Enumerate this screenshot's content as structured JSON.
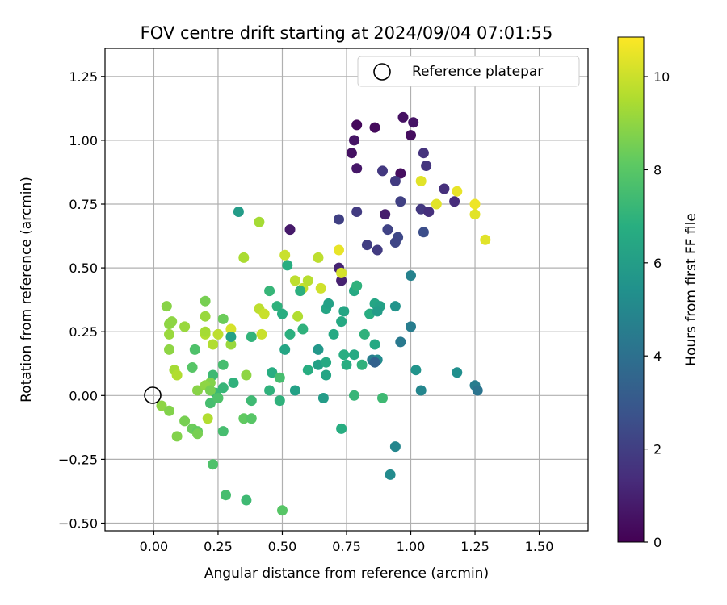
{
  "chart_data": {
    "type": "scatter",
    "title": "FOV centre drift starting at 2024/09/04 07:01:55",
    "xlabel": "Angular distance from reference (arcmin)",
    "ylabel": "Rotation from reference (arcmin)",
    "xlim": [
      -0.19,
      1.69
    ],
    "ylim": [
      -0.53,
      1.36
    ],
    "xticks": [
      "0.00",
      "0.25",
      "0.50",
      "0.75",
      "1.00",
      "1.25",
      "1.50"
    ],
    "yticks": [
      "−0.50",
      "−0.25",
      "0.00",
      "0.25",
      "0.50",
      "0.75",
      "1.00",
      "1.25"
    ],
    "grid": true,
    "legend": {
      "placement": "top-right",
      "entries": [
        "Reference platepar"
      ]
    },
    "reference_point": {
      "x": 0.0,
      "y": 0.0
    },
    "colorbar": {
      "label": "Hours from first FF file",
      "range": [
        0,
        10.85
      ],
      "ticks": [
        "0",
        "2",
        "4",
        "6",
        "8",
        "10"
      ],
      "colormap": "viridis"
    },
    "points": [
      [
        0.79,
        1.06,
        0.2
      ],
      [
        0.86,
        1.05,
        0.3
      ],
      [
        0.97,
        1.09,
        0.5
      ],
      [
        1.01,
        1.07,
        0.6
      ],
      [
        1.0,
        1.02,
        0.4
      ],
      [
        0.78,
        1.0,
        0.6
      ],
      [
        0.77,
        0.95,
        0.5
      ],
      [
        0.79,
        0.89,
        0.7
      ],
      [
        0.96,
        0.87,
        0.4
      ],
      [
        1.05,
        0.95,
        1.6
      ],
      [
        0.89,
        0.88,
        1.8
      ],
      [
        0.94,
        0.84,
        1.9
      ],
      [
        1.06,
        0.9,
        1.7
      ],
      [
        1.13,
        0.81,
        1.5
      ],
      [
        1.17,
        0.76,
        1.4
      ],
      [
        0.79,
        0.72,
        1.9
      ],
      [
        0.72,
        0.69,
        2.1
      ],
      [
        0.96,
        0.76,
        2.1
      ],
      [
        1.04,
        0.73,
        1.8
      ],
      [
        1.07,
        0.72,
        1.5
      ],
      [
        0.9,
        0.71,
        0.9
      ],
      [
        0.53,
        0.65,
        0.8
      ],
      [
        0.91,
        0.65,
        2.2
      ],
      [
        0.95,
        0.62,
        2.4
      ],
      [
        0.94,
        0.6,
        2.3
      ],
      [
        1.05,
        0.64,
        2.6
      ],
      [
        0.83,
        0.59,
        2.0
      ],
      [
        0.87,
        0.57,
        1.9
      ],
      [
        0.72,
        0.5,
        1.1
      ],
      [
        0.73,
        0.45,
        1.0
      ],
      [
        1.04,
        0.84,
        10.4
      ],
      [
        1.1,
        0.75,
        10.4
      ],
      [
        1.18,
        0.8,
        10.5
      ],
      [
        1.25,
        0.75,
        10.6
      ],
      [
        1.25,
        0.71,
        10.4
      ],
      [
        1.29,
        0.61,
        10.4
      ],
      [
        0.72,
        0.57,
        10.5
      ],
      [
        0.73,
        0.48,
        10.2
      ],
      [
        0.51,
        0.55,
        10.0
      ],
      [
        0.64,
        0.54,
        9.8
      ],
      [
        0.35,
        0.54,
        9.5
      ],
      [
        0.41,
        0.68,
        9.4
      ],
      [
        0.55,
        0.45,
        9.8
      ],
      [
        0.58,
        0.42,
        9.9
      ],
      [
        0.6,
        0.45,
        9.7
      ],
      [
        0.65,
        0.42,
        10.1
      ],
      [
        0.56,
        0.31,
        9.6
      ],
      [
        0.41,
        0.34,
        9.8
      ],
      [
        0.43,
        0.32,
        10.0
      ],
      [
        0.42,
        0.24,
        10.0
      ],
      [
        0.3,
        0.26,
        10.2
      ],
      [
        0.25,
        0.24,
        9.8
      ],
      [
        0.2,
        0.24,
        9.6
      ],
      [
        0.2,
        0.25,
        9.4
      ],
      [
        0.23,
        0.2,
        9.6
      ],
      [
        0.2,
        0.31,
        9.2
      ],
      [
        0.12,
        0.27,
        9.2
      ],
      [
        0.06,
        0.28,
        9.0
      ],
      [
        0.06,
        0.24,
        9.2
      ],
      [
        0.07,
        0.29,
        9.0
      ],
      [
        0.06,
        0.18,
        9.0
      ],
      [
        0.05,
        0.35,
        8.9
      ],
      [
        0.08,
        0.1,
        9.4
      ],
      [
        0.09,
        0.08,
        9.6
      ],
      [
        0.36,
        0.08,
        9.0
      ],
      [
        0.3,
        0.2,
        9.2
      ],
      [
        0.33,
        0.72,
        6.0
      ],
      [
        0.52,
        0.51,
        6.8
      ],
      [
        0.57,
        0.41,
        6.9
      ],
      [
        0.45,
        0.41,
        7.2
      ],
      [
        0.48,
        0.35,
        7.0
      ],
      [
        0.5,
        0.32,
        6.8
      ],
      [
        0.58,
        0.26,
        7.0
      ],
      [
        0.53,
        0.24,
        6.9
      ],
      [
        0.38,
        0.23,
        7.1
      ],
      [
        0.3,
        0.23,
        6.2
      ],
      [
        0.27,
        0.3,
        8.4
      ],
      [
        0.2,
        0.37,
        8.6
      ],
      [
        0.16,
        0.18,
        7.8
      ],
      [
        0.15,
        0.11,
        8.0
      ],
      [
        0.27,
        0.12,
        7.6
      ],
      [
        0.23,
        0.08,
        7.4
      ],
      [
        0.31,
        0.05,
        7.0
      ],
      [
        0.27,
        0.03,
        7.2
      ],
      [
        0.24,
        0.01,
        7.3
      ],
      [
        0.22,
        0.05,
        8.8
      ],
      [
        0.17,
        0.02,
        8.9
      ],
      [
        0.2,
        0.04,
        9.0
      ],
      [
        0.22,
        0.02,
        8.6
      ],
      [
        0.22,
        -0.03,
        7.6
      ],
      [
        0.25,
        -0.01,
        7.8
      ],
      [
        0.21,
        -0.09,
        9.6
      ],
      [
        0.12,
        -0.1,
        8.6
      ],
      [
        0.03,
        -0.04,
        9.0
      ],
      [
        0.06,
        -0.06,
        8.8
      ],
      [
        0.09,
        -0.16,
        8.8
      ],
      [
        0.15,
        -0.13,
        8.4
      ],
      [
        0.17,
        -0.14,
        8.2
      ],
      [
        0.17,
        -0.15,
        8.6
      ],
      [
        0.27,
        -0.14,
        7.6
      ],
      [
        0.35,
        -0.09,
        8.2
      ],
      [
        0.38,
        -0.09,
        8.0
      ],
      [
        0.38,
        -0.02,
        7.4
      ],
      [
        0.23,
        -0.27,
        7.8
      ],
      [
        0.28,
        -0.39,
        7.6
      ],
      [
        0.36,
        -0.41,
        7.4
      ],
      [
        0.5,
        -0.45,
        8.0
      ],
      [
        0.45,
        0.02,
        7.0
      ],
      [
        0.46,
        0.09,
        6.8
      ],
      [
        0.49,
        0.07,
        7.6
      ],
      [
        0.49,
        -0.02,
        7.0
      ],
      [
        0.55,
        0.02,
        6.2
      ],
      [
        0.6,
        0.1,
        6.8
      ],
      [
        0.51,
        0.18,
        6.4
      ],
      [
        0.64,
        0.18,
        5.8
      ],
      [
        0.64,
        0.12,
        6.2
      ],
      [
        0.67,
        0.13,
        6.6
      ],
      [
        0.67,
        0.08,
        6.4
      ],
      [
        0.66,
        -0.01,
        6.0
      ],
      [
        0.73,
        0.29,
        6.6
      ],
      [
        0.67,
        0.34,
        6.4
      ],
      [
        0.68,
        0.36,
        6.2
      ],
      [
        0.7,
        0.24,
        6.6
      ],
      [
        0.74,
        0.33,
        6.4
      ],
      [
        0.78,
        0.41,
        6.6
      ],
      [
        0.79,
        0.43,
        6.8
      ],
      [
        0.79,
        0.43,
        7.0
      ],
      [
        0.74,
        0.16,
        6.8
      ],
      [
        0.78,
        0.16,
        6.6
      ],
      [
        0.75,
        0.12,
        6.8
      ],
      [
        0.81,
        0.12,
        7.0
      ],
      [
        0.86,
        0.2,
        6.6
      ],
      [
        0.82,
        0.24,
        7.0
      ],
      [
        0.84,
        0.32,
        6.8
      ],
      [
        0.86,
        0.36,
        6.4
      ],
      [
        0.88,
        0.35,
        6.2
      ],
      [
        0.87,
        0.33,
        6.0
      ],
      [
        0.94,
        0.35,
        5.6
      ],
      [
        0.85,
        0.14,
        4.6
      ],
      [
        0.87,
        0.14,
        5.2
      ],
      [
        0.86,
        0.13,
        3.4
      ],
      [
        0.96,
        0.21,
        4.4
      ],
      [
        1.0,
        0.27,
        4.6
      ],
      [
        1.0,
        0.47,
        4.8
      ],
      [
        1.02,
        0.1,
        5.6
      ],
      [
        1.04,
        0.02,
        5.0
      ],
      [
        1.18,
        0.09,
        5.4
      ],
      [
        1.25,
        0.04,
        4.6
      ],
      [
        1.26,
        0.02,
        4.2
      ],
      [
        0.78,
        0.0,
        7.2
      ],
      [
        0.89,
        -0.01,
        7.4
      ],
      [
        0.73,
        -0.13,
        6.8
      ],
      [
        0.94,
        -0.2,
        5.0
      ],
      [
        0.92,
        -0.31,
        5.2
      ]
    ]
  }
}
